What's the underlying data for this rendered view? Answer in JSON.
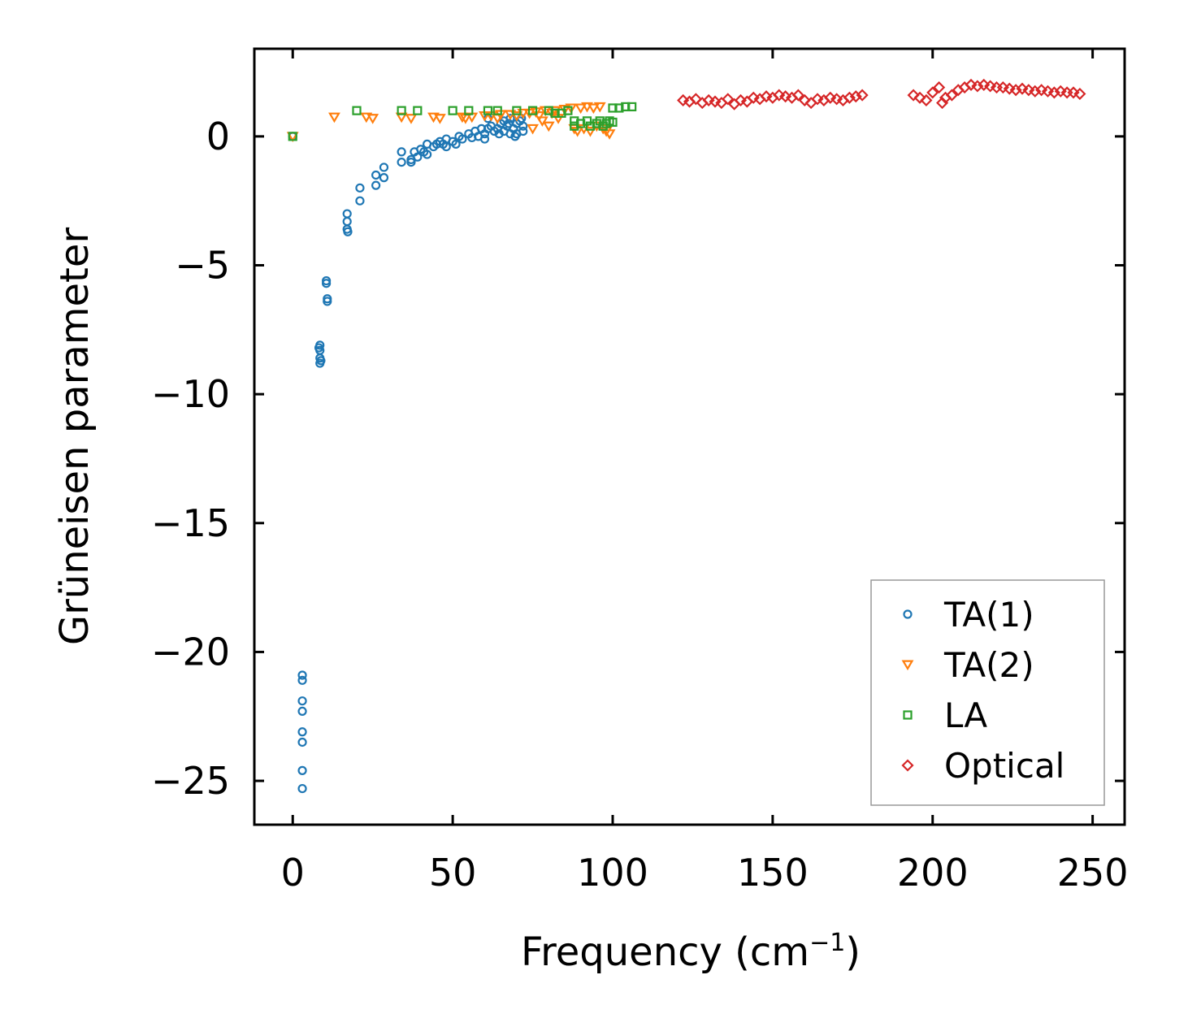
{
  "chart_data": {
    "type": "scatter",
    "title": "",
    "xlabel_main": "Frequency (cm",
    "xlabel_sup": "−1",
    "xlabel_tail": ")",
    "ylabel": "Grüneisen parameter",
    "xlim": [
      -12,
      260
    ],
    "ylim": [
      -26.7,
      3.4
    ],
    "xticks": [
      0,
      50,
      100,
      150,
      200,
      250
    ],
    "yticks": [
      0,
      -5,
      -10,
      -15,
      -20,
      -25
    ],
    "xtick_labels": [
      "0",
      "50",
      "100",
      "150",
      "200",
      "250"
    ],
    "ytick_labels": [
      "0",
      "−5",
      "−10",
      "−15",
      "−20",
      "−25"
    ],
    "legend_position": "lower-right",
    "series": [
      {
        "name": "TA(1)",
        "marker": "circle",
        "color": "#1f77b4",
        "points": [
          [
            0,
            0
          ],
          [
            3,
            -20.9
          ],
          [
            3,
            -21.1
          ],
          [
            3,
            -21.9
          ],
          [
            3,
            -22.3
          ],
          [
            3,
            -23.1
          ],
          [
            3,
            -23.5
          ],
          [
            3,
            -24.6
          ],
          [
            3,
            -25.3
          ],
          [
            8.5,
            -8.1
          ],
          [
            8.5,
            -8.3
          ],
          [
            8.5,
            -8.6
          ],
          [
            8.5,
            -8.8
          ],
          [
            8.2,
            -8.2
          ],
          [
            8.8,
            -8.7
          ],
          [
            10.5,
            -5.6
          ],
          [
            10.5,
            -5.7
          ],
          [
            10.8,
            -6.3
          ],
          [
            10.8,
            -6.4
          ],
          [
            17,
            -3.0
          ],
          [
            17,
            -3.3
          ],
          [
            17,
            -3.6
          ],
          [
            17.2,
            -3.7
          ],
          [
            21,
            -2.0
          ],
          [
            21,
            -2.5
          ],
          [
            26,
            -1.5
          ],
          [
            26,
            -1.9
          ],
          [
            28.5,
            -1.2
          ],
          [
            28.5,
            -1.6
          ],
          [
            34,
            -0.6
          ],
          [
            34,
            -1.0
          ],
          [
            37,
            -0.9
          ],
          [
            37,
            -1.0
          ],
          [
            38,
            -0.6
          ],
          [
            39,
            -0.8
          ],
          [
            40,
            -0.5
          ],
          [
            41,
            -0.6
          ],
          [
            42,
            -0.3
          ],
          [
            42,
            -0.7
          ],
          [
            44,
            -0.4
          ],
          [
            45,
            -0.3
          ],
          [
            46,
            -0.2
          ],
          [
            47,
            -0.3
          ],
          [
            48,
            -0.1
          ],
          [
            48,
            -0.4
          ],
          [
            50,
            -0.2
          ],
          [
            51,
            -0.3
          ],
          [
            52,
            0.0
          ],
          [
            53,
            -0.1
          ],
          [
            55,
            0.1
          ],
          [
            56,
            -0.05
          ],
          [
            57,
            0.2
          ],
          [
            58,
            0.0
          ],
          [
            59,
            0.3
          ],
          [
            60,
            0.1
          ],
          [
            60,
            -0.1
          ],
          [
            61,
            0.3
          ],
          [
            61,
            0.7
          ],
          [
            62,
            0.4
          ],
          [
            63,
            0.2
          ],
          [
            64,
            0.3
          ],
          [
            65,
            0.5
          ],
          [
            66,
            0.2
          ],
          [
            66,
            0.6
          ],
          [
            67,
            0.4
          ],
          [
            68,
            0.7
          ],
          [
            68,
            0.1
          ],
          [
            69,
            0.3
          ],
          [
            70,
            0.5
          ],
          [
            70,
            0.1
          ],
          [
            71,
            0.6
          ],
          [
            72,
            0.2
          ],
          [
            72,
            0.4
          ],
          [
            69.5,
            0.0
          ],
          [
            67.5,
            0.5
          ],
          [
            64.5,
            0.1
          ],
          [
            71.5,
            0.7
          ]
        ]
      },
      {
        "name": "TA(2)",
        "marker": "triangle-down",
        "color": "#ff7f0e",
        "points": [
          [
            0,
            0
          ],
          [
            13,
            0.75
          ],
          [
            23,
            0.75
          ],
          [
            25,
            0.7
          ],
          [
            34,
            0.75
          ],
          [
            37,
            0.7
          ],
          [
            44,
            0.75
          ],
          [
            46,
            0.7
          ],
          [
            53,
            0.75
          ],
          [
            54,
            0.7
          ],
          [
            56,
            0.75
          ],
          [
            60,
            0.8
          ],
          [
            62,
            0.8
          ],
          [
            64,
            0.7
          ],
          [
            65,
            0.85
          ],
          [
            68,
            0.85
          ],
          [
            70,
            0.8
          ],
          [
            72,
            0.9
          ],
          [
            74,
            0.9
          ],
          [
            75,
            0.3
          ],
          [
            76,
            0.95
          ],
          [
            77,
            0.8
          ],
          [
            78,
            0.6
          ],
          [
            79,
            1.0
          ],
          [
            80,
            0.4
          ],
          [
            81,
            0.9
          ],
          [
            82,
            1.0
          ],
          [
            83,
            0.7
          ],
          [
            85,
            1.05
          ],
          [
            87,
            1.1
          ],
          [
            88,
            0.3
          ],
          [
            89,
            0.2
          ],
          [
            90,
            1.1
          ],
          [
            91,
            0.3
          ],
          [
            92,
            1.15
          ],
          [
            93,
            0.2
          ],
          [
            94,
            1.1
          ],
          [
            95,
            0.4
          ],
          [
            96,
            1.15
          ],
          [
            97,
            0.3
          ],
          [
            98,
            0.2
          ],
          [
            99,
            0.1
          ]
        ]
      },
      {
        "name": "LA",
        "marker": "square",
        "color": "#2ca02c",
        "points": [
          [
            0,
            0
          ],
          [
            20,
            1.0
          ],
          [
            34,
            1.0
          ],
          [
            39,
            1.0
          ],
          [
            50,
            1.0
          ],
          [
            55,
            1.0
          ],
          [
            61,
            1.0
          ],
          [
            64,
            1.0
          ],
          [
            70,
            1.0
          ],
          [
            75,
            1.0
          ],
          [
            80,
            1.0
          ],
          [
            82,
            0.9
          ],
          [
            84,
            0.9
          ],
          [
            86,
            1.0
          ],
          [
            88,
            0.4
          ],
          [
            88,
            0.6
          ],
          [
            90,
            0.5
          ],
          [
            92,
            0.6
          ],
          [
            93,
            0.4
          ],
          [
            95,
            0.5
          ],
          [
            96,
            0.6
          ],
          [
            97,
            0.4
          ],
          [
            98,
            0.5
          ],
          [
            99,
            0.6
          ],
          [
            100,
            0.55
          ],
          [
            100,
            1.1
          ],
          [
            102,
            1.1
          ],
          [
            104,
            1.15
          ],
          [
            106,
            1.15
          ]
        ]
      },
      {
        "name": "Optical",
        "marker": "diamond",
        "color": "#d62728",
        "points": [
          [
            122,
            1.4
          ],
          [
            124,
            1.35
          ],
          [
            126,
            1.45
          ],
          [
            128,
            1.3
          ],
          [
            130,
            1.4
          ],
          [
            132,
            1.35
          ],
          [
            134,
            1.3
          ],
          [
            136,
            1.45
          ],
          [
            138,
            1.25
          ],
          [
            140,
            1.4
          ],
          [
            142,
            1.35
          ],
          [
            144,
            1.5
          ],
          [
            146,
            1.45
          ],
          [
            148,
            1.55
          ],
          [
            150,
            1.5
          ],
          [
            152,
            1.6
          ],
          [
            154,
            1.55
          ],
          [
            156,
            1.5
          ],
          [
            158,
            1.6
          ],
          [
            160,
            1.4
          ],
          [
            162,
            1.3
          ],
          [
            164,
            1.45
          ],
          [
            166,
            1.4
          ],
          [
            168,
            1.5
          ],
          [
            170,
            1.45
          ],
          [
            172,
            1.4
          ],
          [
            174,
            1.5
          ],
          [
            176,
            1.55
          ],
          [
            178,
            1.6
          ],
          [
            194,
            1.6
          ],
          [
            196,
            1.5
          ],
          [
            198,
            1.4
          ],
          [
            200,
            1.7
          ],
          [
            202,
            1.9
          ],
          [
            203,
            1.3
          ],
          [
            204,
            1.5
          ],
          [
            206,
            1.6
          ],
          [
            208,
            1.8
          ],
          [
            210,
            1.9
          ],
          [
            212,
            2.0
          ],
          [
            214,
            1.95
          ],
          [
            216,
            2.0
          ],
          [
            218,
            1.95
          ],
          [
            220,
            1.9
          ],
          [
            222,
            1.9
          ],
          [
            224,
            1.85
          ],
          [
            226,
            1.8
          ],
          [
            228,
            1.85
          ],
          [
            230,
            1.8
          ],
          [
            232,
            1.75
          ],
          [
            234,
            1.8
          ],
          [
            236,
            1.75
          ],
          [
            238,
            1.7
          ],
          [
            240,
            1.75
          ],
          [
            242,
            1.7
          ],
          [
            244,
            1.7
          ],
          [
            246,
            1.65
          ]
        ]
      }
    ]
  }
}
